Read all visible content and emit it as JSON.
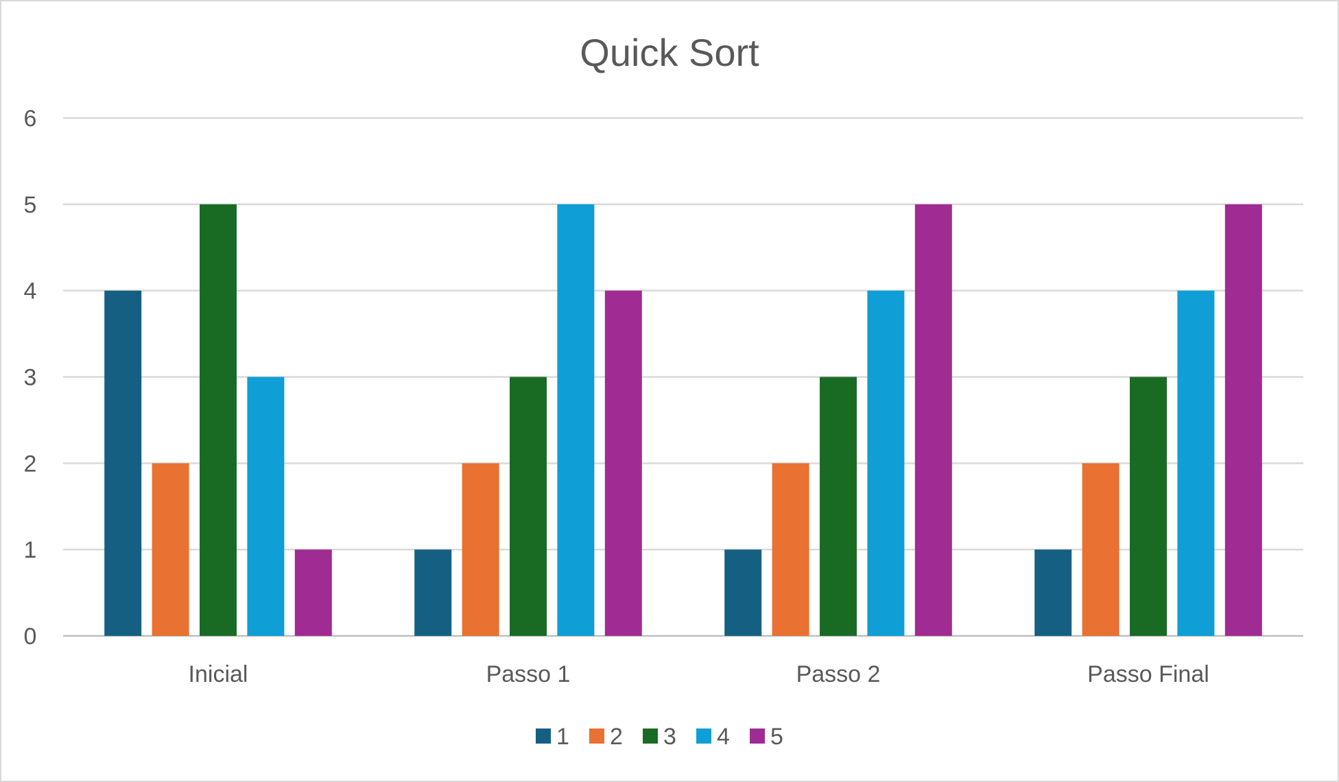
{
  "chart_data": {
    "type": "bar",
    "title": "Quick Sort",
    "categories": [
      "Inicial",
      "Passo 1",
      "Passo 2",
      "Passo Final"
    ],
    "series": [
      {
        "name": "1",
        "color": "#156082",
        "values": [
          4,
          1,
          1,
          1
        ]
      },
      {
        "name": "2",
        "color": "#e97132",
        "values": [
          2,
          2,
          2,
          2
        ]
      },
      {
        "name": "3",
        "color": "#196b24",
        "values": [
          5,
          3,
          3,
          3
        ]
      },
      {
        "name": "4",
        "color": "#0f9ed5",
        "values": [
          3,
          5,
          4,
          4
        ]
      },
      {
        "name": "5",
        "color": "#a02b93",
        "values": [
          1,
          4,
          5,
          5
        ]
      }
    ],
    "xlabel": "",
    "ylabel": "",
    "ylim": [
      0,
      6
    ],
    "yticks": [
      0,
      1,
      2,
      3,
      4,
      5,
      6
    ],
    "grid": true,
    "legend_position": "bottom"
  }
}
